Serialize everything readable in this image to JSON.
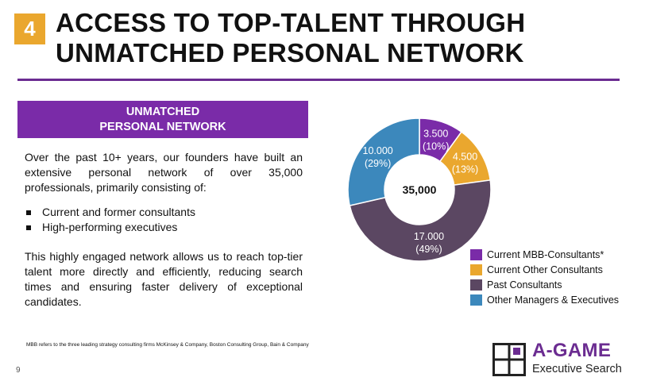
{
  "header": {
    "number": "4",
    "title_line1": "ACCESS TO TOP-TALENT THROUGH",
    "title_line2": "UNMATCHED PERSONAL NETWORK"
  },
  "banner": {
    "line1": "UNMATCHED",
    "line2": "PERSONAL NETWORK"
  },
  "body": {
    "intro": "Over the past 10+ years, our founders have built an extensive personal network of over 35,000 professionals, primarily consisting of:",
    "bullets": [
      "Current and former consultants",
      "High-performing executives"
    ],
    "closing": "This highly engaged network allows us to reach top-tier talent more directly and efficiently, reducing search times and ensuring faster delivery of exceptional candidates."
  },
  "chart_data": {
    "type": "pie",
    "center_label": "35,000",
    "slices": [
      {
        "label": "Current MBB-Consultants*",
        "value": 3500,
        "value_text": "3.500",
        "pct_text": "(10%)",
        "color": "#7A2BA8"
      },
      {
        "label": "Current Other Consultants",
        "value": 4500,
        "value_text": "4.500",
        "pct_text": "(13%)",
        "color": "#EAA72E"
      },
      {
        "label": "Past Consultants",
        "value": 17000,
        "value_text": "17.000",
        "pct_text": "(49%)",
        "color": "#5B4762"
      },
      {
        "label": "Other Managers & Executives",
        "value": 10000,
        "value_text": "10.000",
        "pct_text": "(29%)",
        "color": "#3C88BC"
      }
    ],
    "legend_position": "bottom-right"
  },
  "footer": {
    "footnote": "MBB refers to the three leading strategy consulting firms McKinsey & Company, Boston Consulting Group, Bain & Company",
    "page_number": "9",
    "logo_line1": "A-GAME",
    "logo_line2": "Executive Search",
    "brand_color": "#6B2C91",
    "accent_color": "#EAA72E"
  }
}
